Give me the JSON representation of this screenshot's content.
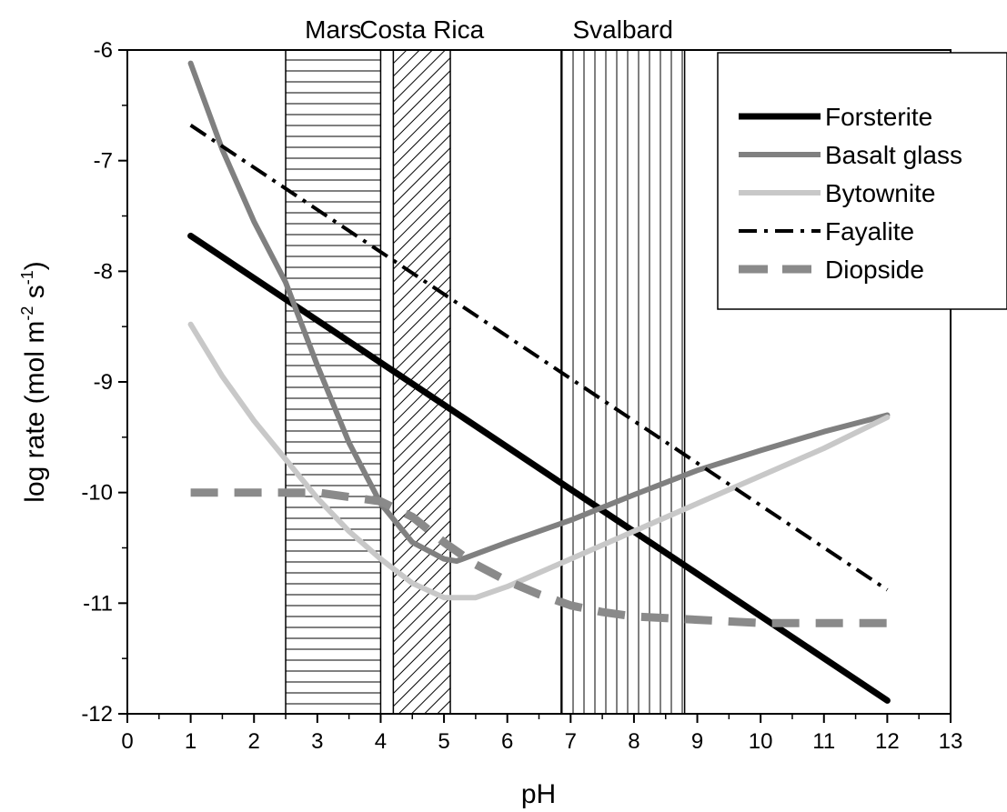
{
  "chart_data": {
    "type": "line",
    "title": "",
    "xlabel": "pH",
    "ylabel_main": "log rate (mol m",
    "ylabel_exp1": "-2",
    "ylabel_mid": " s",
    "ylabel_exp2": "-1",
    "ylabel_end": ")",
    "xlim": [
      0,
      13
    ],
    "ylim": [
      -12,
      -6
    ],
    "xticks": [
      "0",
      "1",
      "2",
      "3",
      "4",
      "5",
      "6",
      "7",
      "8",
      "9",
      "10",
      "11",
      "12",
      "13"
    ],
    "yticks": [
      "-12",
      "-11",
      "-10",
      "-9",
      "-8",
      "-7",
      "-6"
    ],
    "grid": false,
    "legend_position": "top-right",
    "regions": [
      {
        "name": "Mars",
        "x0": 2.5,
        "x1": 4.0,
        "hatch": "horizontal"
      },
      {
        "name": "Costa Rica",
        "x0": 4.2,
        "x1": 5.1,
        "hatch": "diagonal"
      },
      {
        "name": "Svalbard",
        "x0": 6.85,
        "x1": 8.8,
        "hatch": "vertical"
      }
    ],
    "series": [
      {
        "name": "Forsterite",
        "style": "solid",
        "color": "#000000",
        "width": 7,
        "x": [
          1,
          12
        ],
        "y": [
          -7.68,
          -11.88
        ]
      },
      {
        "name": "Basalt glass",
        "style": "solid",
        "color": "#808080",
        "width": 6,
        "x": [
          1,
          1.5,
          2,
          2.5,
          3,
          3.5,
          4,
          4.5,
          5,
          5.2,
          6,
          7,
          8,
          9,
          10,
          11,
          12
        ],
        "y": [
          -6.12,
          -6.9,
          -7.55,
          -8.1,
          -8.85,
          -9.55,
          -10.1,
          -10.45,
          -10.6,
          -10.62,
          -10.45,
          -10.25,
          -10.02,
          -9.8,
          -9.62,
          -9.45,
          -9.3
        ]
      },
      {
        "name": "Bytownite",
        "style": "solid",
        "color": "#c8c8c8",
        "width": 6,
        "x": [
          1,
          1.5,
          2,
          2.5,
          3,
          3.5,
          4,
          4.5,
          5,
          5.5,
          6,
          7,
          8,
          9,
          10,
          11,
          12
        ],
        "y": [
          -8.48,
          -8.95,
          -9.35,
          -9.7,
          -10.05,
          -10.35,
          -10.6,
          -10.82,
          -10.95,
          -10.95,
          -10.85,
          -10.6,
          -10.35,
          -10.1,
          -9.85,
          -9.6,
          -9.32
        ]
      },
      {
        "name": "Fayalite",
        "style": "dashdot",
        "color": "#000000",
        "width": 4,
        "x": [
          1,
          12
        ],
        "y": [
          -6.68,
          -10.88
        ]
      },
      {
        "name": "Diopside",
        "style": "dash",
        "color": "#8a8a8a",
        "width": 9,
        "x": [
          1,
          2,
          3,
          4,
          4.5,
          5,
          5.5,
          6,
          6.5,
          7,
          7.5,
          8,
          9,
          10,
          11,
          12
        ],
        "y": [
          -10.0,
          -10.0,
          -10.0,
          -10.08,
          -10.22,
          -10.45,
          -10.65,
          -10.8,
          -10.92,
          -11.02,
          -11.08,
          -11.12,
          -11.15,
          -11.18,
          -11.18,
          -11.18
        ]
      }
    ]
  }
}
